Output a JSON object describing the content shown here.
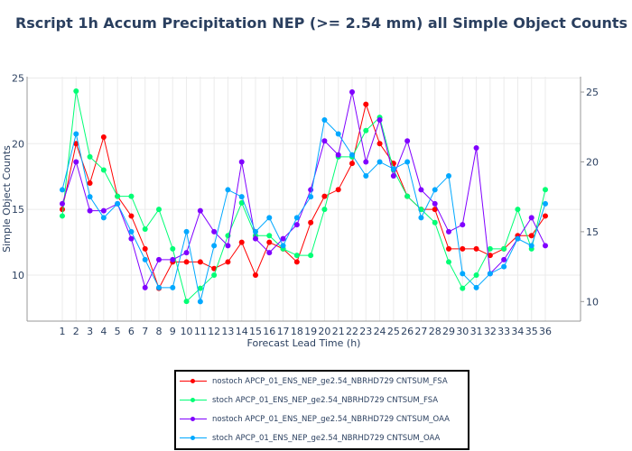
{
  "chart_data": {
    "type": "line",
    "title": "Rscript 1h Accum Precipitation NEP (>= 2.54 mm) all Simple Object Counts",
    "xlabel": "Forecast Lead Time (h)",
    "ylabel": "Simple Object Counts",
    "x": [
      1,
      2,
      3,
      4,
      5,
      6,
      7,
      8,
      9,
      10,
      11,
      12,
      13,
      14,
      15,
      16,
      17,
      18,
      19,
      20,
      21,
      22,
      23,
      24,
      25,
      26,
      27,
      28,
      29,
      30,
      31,
      32,
      33,
      34,
      35,
      36
    ],
    "ylim": [
      6.5,
      25.1
    ],
    "y2lim": [
      8.6,
      26.1
    ],
    "yticks": [
      10,
      15,
      20,
      25
    ],
    "y2ticks": [
      10,
      15,
      20,
      25
    ],
    "grid": true,
    "legend_placement": "bottom",
    "series": [
      {
        "name": "nostoch APCP_01_ENS_NEP_ge2.54_NBRHD729 CNTSUM_FSA",
        "color": "#ff0000",
        "axis": "y",
        "values": [
          15,
          20,
          17,
          20.5,
          16,
          14.5,
          12,
          9,
          11,
          11,
          11,
          10.5,
          11,
          12.5,
          10,
          12.5,
          12,
          11,
          14,
          16,
          16.5,
          18.5,
          23,
          20,
          18.5,
          16,
          15,
          15,
          12,
          12,
          12,
          11.5,
          12,
          13,
          13,
          14.5
        ]
      },
      {
        "name": "stoch APCP_01_ENS_NEP_ge2.54_NBRHD729 CNTSUM_FSA",
        "color": "#00fe75",
        "axis": "y",
        "values": [
          14.5,
          24,
          19,
          18,
          16,
          16,
          13.5,
          15,
          12,
          8,
          9,
          10,
          13,
          15.5,
          13,
          13,
          12,
          11.5,
          11.5,
          15,
          19,
          19,
          21,
          22,
          18,
          16,
          15,
          14,
          11,
          9,
          10,
          12,
          12,
          15,
          12,
          16.5
        ]
      },
      {
        "name": "nostoch APCP_01_ENS_NEP_ge2.54_NBRHD729 CNTSUM_OAA",
        "color": "#8000ff",
        "axis": "y2",
        "values": [
          17,
          20,
          16.5,
          16.5,
          17,
          14.5,
          11,
          13,
          13,
          13.5,
          16.5,
          15,
          14,
          20,
          14.5,
          13.5,
          14.5,
          15.5,
          18,
          21.5,
          20.5,
          25,
          20,
          23,
          19,
          21.5,
          18,
          17,
          15,
          15.5,
          21,
          12,
          13,
          14.5,
          16,
          14
        ]
      },
      {
        "name": "stoch APCP_01_ENS_NEP_ge2.54_NBRHD729 CNTSUM_OAA",
        "color": "#00a8ff",
        "axis": "y2",
        "values": [
          18,
          22,
          17.5,
          16,
          17,
          15,
          13,
          11,
          11,
          15,
          10,
          14,
          18,
          17.5,
          15,
          16,
          14,
          16,
          17.5,
          23,
          22,
          20.5,
          19,
          20,
          19.5,
          20,
          16,
          18,
          19,
          12,
          11,
          12,
          12.5,
          14.5,
          14,
          17
        ]
      }
    ]
  }
}
